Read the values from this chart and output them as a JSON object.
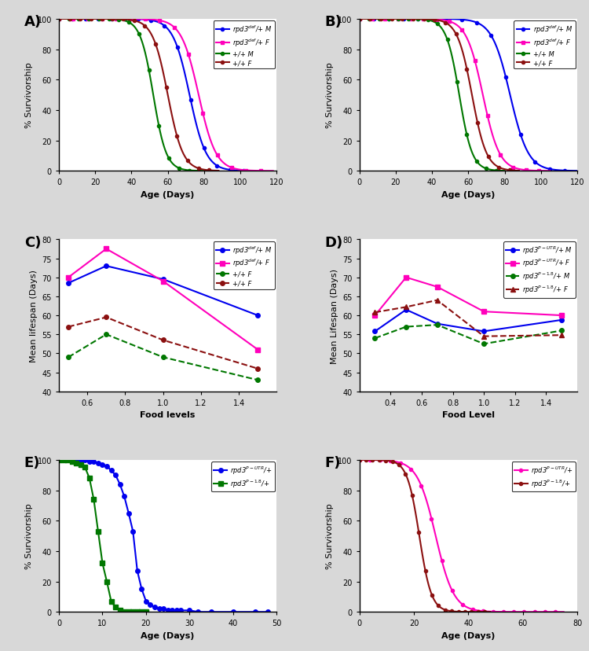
{
  "panel_A": {
    "title": "A)",
    "xlabel": "Age (Days)",
    "ylabel": "% Survivorship",
    "xlim": [
      0,
      120
    ],
    "ylim": [
      0,
      100
    ],
    "xticks": [
      0,
      20,
      40,
      60,
      80,
      100,
      120
    ],
    "yticks": [
      0,
      20,
      40,
      60,
      80,
      100
    ],
    "series": [
      {
        "label": "rpd3$^{def}$/+ M",
        "color": "#0000EE",
        "linestyle": "-",
        "marker": "o",
        "midpoint": 72,
        "steepness": 0.22,
        "xmax": 108
      },
      {
        "label": "rpd3$^{def}$/+ F",
        "color": "#FF00BB",
        "linestyle": "-",
        "marker": "s",
        "midpoint": 77,
        "steepness": 0.21,
        "xmax": 118
      },
      {
        "label": "+/+ M",
        "color": "#007700",
        "linestyle": "-",
        "marker": "o",
        "midpoint": 52,
        "steepness": 0.28,
        "xmax": 82
      },
      {
        "label": "+/+ F",
        "color": "#8B1010",
        "linestyle": "-",
        "marker": "o",
        "midpoint": 60,
        "steepness": 0.24,
        "xmax": 88
      }
    ]
  },
  "panel_B": {
    "title": "B)",
    "xlabel": "Age (Days)",
    "ylabel": "% Survivorship",
    "xlim": [
      0,
      120
    ],
    "ylim": [
      0,
      100
    ],
    "xticks": [
      0,
      20,
      40,
      60,
      80,
      100,
      120
    ],
    "yticks": [
      0,
      20,
      40,
      60,
      80,
      100
    ],
    "series": [
      {
        "label": "rpd3$^{def}$/+ M",
        "color": "#0000EE",
        "linestyle": "-",
        "marker": "o",
        "midpoint": 83,
        "steepness": 0.2,
        "xmax": 120
      },
      {
        "label": "rpd3$^{def}$/+ F",
        "color": "#FF00BB",
        "linestyle": "-",
        "marker": "s",
        "midpoint": 68,
        "steepness": 0.22,
        "xmax": 105
      },
      {
        "label": "+/+ M",
        "color": "#007700",
        "linestyle": "-",
        "marker": "o",
        "midpoint": 55,
        "steepness": 0.28,
        "xmax": 80
      },
      {
        "label": "+/+ F",
        "color": "#8B1010",
        "linestyle": "-",
        "marker": "o",
        "midpoint": 62,
        "steepness": 0.25,
        "xmax": 88
      }
    ]
  },
  "panel_C": {
    "title": "C)",
    "xlabel": "Food levels",
    "ylabel": "Mean lifespan (Days)",
    "xlim": [
      0.45,
      1.6
    ],
    "ylim": [
      40,
      80
    ],
    "xticks": [
      0.6,
      0.8,
      1.0,
      1.2,
      1.4
    ],
    "yticks": [
      40,
      45,
      50,
      55,
      60,
      65,
      70,
      75,
      80
    ],
    "series": [
      {
        "label": "rpd3$^{def}$/+ M",
        "color": "#0000EE",
        "linestyle": "-",
        "marker": "o",
        "x": [
          0.5,
          0.7,
          1.0,
          1.5
        ],
        "y": [
          68.5,
          73.0,
          69.5,
          60.0
        ]
      },
      {
        "label": "rpd3$^{def}$/+ F",
        "color": "#FF00BB",
        "linestyle": "-",
        "marker": "s",
        "x": [
          0.5,
          0.7,
          1.0,
          1.5
        ],
        "y": [
          70.0,
          77.5,
          69.0,
          51.0
        ]
      },
      {
        "label": "+/+ F",
        "color": "#007700",
        "linestyle": "--",
        "marker": "o",
        "x": [
          0.5,
          0.7,
          1.0,
          1.5
        ],
        "y": [
          49.0,
          55.0,
          49.0,
          43.0
        ]
      },
      {
        "label": "+/+ F",
        "color": "#8B1010",
        "linestyle": "--",
        "marker": "o",
        "x": [
          0.5,
          0.7,
          1.0,
          1.5
        ],
        "y": [
          57.0,
          59.5,
          53.5,
          46.0
        ]
      }
    ]
  },
  "panel_D": {
    "title": "D)",
    "xlabel": "Food Level",
    "ylabel": "Mean Lifespan (Days)",
    "xlim": [
      0.2,
      1.6
    ],
    "ylim": [
      40,
      80
    ],
    "xticks": [
      0.4,
      0.6,
      0.8,
      1.0,
      1.2,
      1.4
    ],
    "yticks": [
      40,
      45,
      50,
      55,
      60,
      65,
      70,
      75,
      80
    ],
    "series": [
      {
        "label": "rpd3$^{P-UTR}$/+ M",
        "color": "#0000EE",
        "linestyle": "-",
        "marker": "o",
        "x": [
          0.3,
          0.5,
          0.7,
          1.0,
          1.5
        ],
        "y": [
          55.8,
          61.5,
          57.8,
          55.8,
          58.8
        ]
      },
      {
        "label": "rpd3$^{P-UTR}$/+ F",
        "color": "#FF00BB",
        "linestyle": "-",
        "marker": "s",
        "x": [
          0.3,
          0.5,
          0.7,
          1.0,
          1.5
        ],
        "y": [
          60.0,
          70.0,
          67.5,
          61.0,
          60.0
        ]
      },
      {
        "label": "rpd3$^{P-1.8}$/+ M",
        "color": "#007700",
        "linestyle": "--",
        "marker": "o",
        "x": [
          0.3,
          0.5,
          0.7,
          1.0,
          1.5
        ],
        "y": [
          54.0,
          57.0,
          57.5,
          52.5,
          56.0
        ]
      },
      {
        "label": "rpd3$^{P-1.8}$/+ F",
        "color": "#8B1010",
        "linestyle": "--",
        "marker": "^",
        "x": [
          0.3,
          0.5,
          0.7,
          1.0,
          1.5
        ],
        "y": [
          60.8,
          62.2,
          64.0,
          54.5,
          54.8
        ]
      }
    ]
  },
  "panel_E": {
    "title": "E)",
    "xlabel": "Age (Days)",
    "ylabel": "% Survivorship",
    "xlim": [
      0,
      50
    ],
    "ylim": [
      0,
      100
    ],
    "xticks": [
      0,
      10,
      20,
      30,
      40,
      50
    ],
    "yticks": [
      0,
      20,
      40,
      60,
      80,
      100
    ],
    "series": [
      {
        "label": "rpd3$^{P-UTR}$/+",
        "color": "#0000EE",
        "linestyle": "-",
        "marker": "o",
        "pts_x": [
          0,
          1,
          2,
          3,
          4,
          5,
          6,
          7,
          8,
          9,
          10,
          11,
          12,
          13,
          14,
          15,
          16,
          17,
          18,
          19,
          20,
          21,
          22,
          23,
          24,
          25,
          26,
          27,
          28,
          30,
          32,
          35,
          40,
          45,
          48
        ],
        "pts_y": [
          100,
          100,
          100,
          100,
          100,
          100,
          100,
          99,
          99,
          98,
          97,
          96,
          93,
          90,
          84,
          76,
          65,
          53,
          27,
          15,
          7,
          5,
          3,
          2,
          2,
          1,
          1,
          1,
          1,
          1,
          0,
          0,
          0,
          0,
          0
        ]
      },
      {
        "label": "rpd3$^{P-1.8}$/+",
        "color": "#007700",
        "linestyle": "-",
        "marker": "s",
        "pts_x": [
          0,
          1,
          2,
          3,
          4,
          5,
          6,
          7,
          8,
          9,
          10,
          11,
          12,
          13,
          14,
          15,
          16,
          17,
          18,
          19,
          20
        ],
        "pts_y": [
          100,
          100,
          100,
          99,
          98,
          97,
          95,
          88,
          74,
          53,
          32,
          20,
          7,
          3,
          1,
          0,
          0,
          0,
          0,
          0,
          0
        ]
      }
    ]
  },
  "panel_F": {
    "title": "F)",
    "xlabel": "Age (Days)",
    "ylabel": "% Survivorship",
    "xlim": [
      0,
      80
    ],
    "ylim": [
      0,
      100
    ],
    "xticks": [
      0,
      20,
      40,
      60,
      80
    ],
    "yticks": [
      0,
      20,
      40,
      60,
      80,
      100
    ],
    "series": [
      {
        "label": "rpd3$^{P-UTR}$/+",
        "color": "#FF00BB",
        "linestyle": "-",
        "marker": "o",
        "midpoint": 28,
        "steepness": 0.3,
        "xmax": 75
      },
      {
        "label": "rpd3$^{P-1.8}$/+",
        "color": "#8B1010",
        "linestyle": "-",
        "marker": "o",
        "midpoint": 22,
        "steepness": 0.45,
        "xmax": 48
      }
    ]
  },
  "bg_color": "#d8d8d8",
  "panel_bg": "#ffffff"
}
